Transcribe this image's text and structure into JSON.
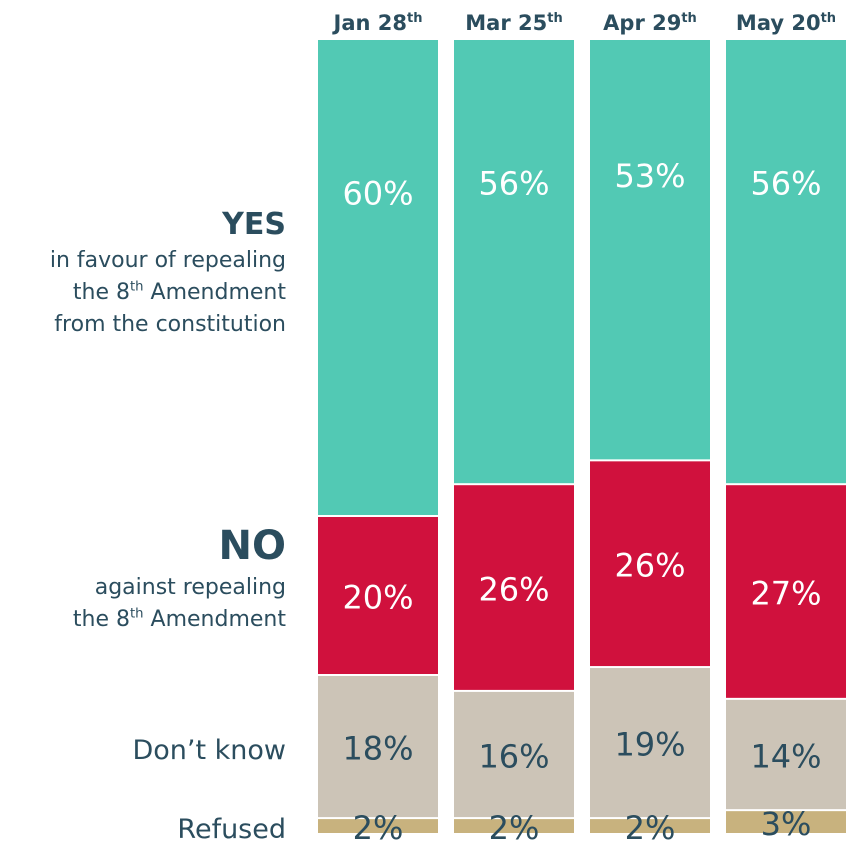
{
  "chart_data": {
    "type": "bar",
    "stacked": true,
    "categories": [
      "Jan 28th",
      "Mar 25th",
      "Apr 29th",
      "May 20th"
    ],
    "series": [
      {
        "name": "YES",
        "color": "#52c9b4",
        "values": [
          60,
          56,
          53,
          56
        ],
        "labels": [
          "60%",
          "56%",
          "53%",
          "56%"
        ]
      },
      {
        "name": "NO",
        "color": "#d0113d",
        "values": [
          20,
          26,
          26,
          27
        ],
        "labels": [
          "20%",
          "26%",
          "26%",
          "27%"
        ]
      },
      {
        "name": "Don’t know",
        "color": "#ccc4b7",
        "values": [
          18,
          16,
          19,
          14
        ],
        "labels": [
          "18%",
          "16%",
          "19%",
          "14%"
        ]
      },
      {
        "name": "Refused",
        "color": "#c8b27e",
        "values": [
          2,
          2,
          2,
          3
        ],
        "labels": [
          "2%",
          "2%",
          "2%",
          "3%"
        ]
      }
    ],
    "category_labels": [
      {
        "base": "Jan 28",
        "sup": "th"
      },
      {
        "base": "Mar 25",
        "sup": "th"
      },
      {
        "base": "Apr 29",
        "sup": "th"
      },
      {
        "base": "May 20",
        "sup": "th"
      }
    ],
    "yes_label": {
      "head": "YES",
      "line1": "in favour of repealing",
      "line2_pre": "the 8",
      "line2_sup": "th",
      "line2_post": " Amendment",
      "line3": "from the constitution"
    },
    "no_label": {
      "head": "NO",
      "line1": "against repealing",
      "line2_pre": "the 8",
      "line2_sup": "th",
      "line2_post": " Amendment"
    },
    "dk_label": "Don’t know",
    "refused_label": "Refused",
    "text_color": "#2b4d5e"
  }
}
